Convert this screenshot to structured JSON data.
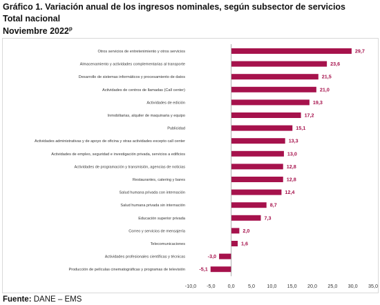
{
  "header": {
    "title_line1": "Gráfico 1. Variación anual de los ingresos nominales, según subsector de servicios",
    "title_line2": "Total nacional",
    "title_line3": "Noviembre 2022",
    "title_line3_sup": "p"
  },
  "footer": {
    "source_label": "Fuente:",
    "source_text": " DANE – EMS"
  },
  "colors": {
    "bar": "#a6124c",
    "label": "#a6124c",
    "axis": "#9a9a9a",
    "text": "#333333"
  },
  "chart_data": {
    "type": "bar",
    "orientation": "horizontal",
    "categories": [
      "Otros servicios de entretenimiento y otros servicios",
      "Almacenamiento y actividades complementarias al transporte",
      "Desarrollo de sistemas informáticos y procesamiento de datos",
      "Actividades de centros de llamadas (Call center)",
      "Actividades de edición",
      "Inmobiliarias, alquiler de maquinaria y equipo",
      "Publicidad",
      "Actividades administrativas y de apoyo de oficina y otras actividades excepto call center",
      "Actividades de empleo, seguridad e investigación privada, servicios a edificios",
      "Actividades de programación y transmisión,  agencias de noticias",
      "Restaurantes, catering y bares",
      "Salud humana privada con internación",
      "Salud humana privada sin internación",
      "Educación superior privada",
      "Correo y servicios de mensajería",
      "Telecomunicaciones",
      "Actividades profesionales científicas y técnicas",
      "Producción de películas cinematográficas y programas de televisión"
    ],
    "values": [
      29.7,
      23.6,
      21.5,
      21.0,
      19.3,
      17.2,
      15.1,
      13.3,
      13.0,
      12.8,
      12.8,
      12.4,
      8.7,
      7.3,
      2.0,
      1.6,
      -3.0,
      -5.1
    ],
    "value_labels": [
      "29,7",
      "23,6",
      "21,5",
      "21,0",
      "19,3",
      "17,2",
      "15,1",
      "13,3",
      "13,0",
      "12,8",
      "12,8",
      "12,4",
      "8,7",
      "7,3",
      "2,0",
      "1,6",
      "-3,0",
      "-5,1"
    ],
    "x_ticks": [
      -10,
      -5,
      0,
      5,
      10,
      15,
      20,
      25,
      30,
      35
    ],
    "x_tick_labels": [
      "-10,0",
      "-5,0",
      "0,0",
      "5,0",
      "10,0",
      "15,0",
      "20,0",
      "25,0",
      "30,0",
      "35,0"
    ],
    "xlim": [
      -10,
      35
    ],
    "grid": false,
    "legend": "none"
  }
}
